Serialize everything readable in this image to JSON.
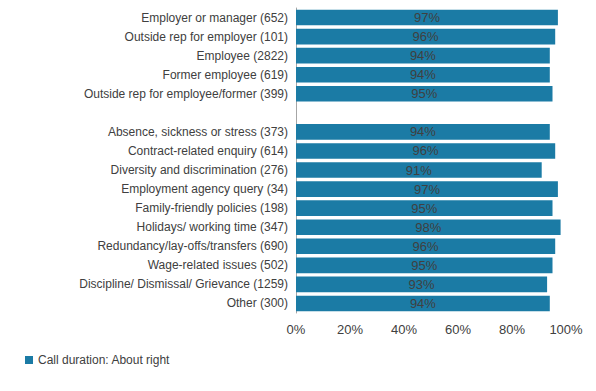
{
  "chart_data": {
    "type": "bar",
    "orientation": "horizontal",
    "categories": [
      "Employer or manager (652)",
      "Outside rep for employer (101)",
      "Employee (2822)",
      "Former employee (619)",
      "Outside rep for employee/former (399)",
      null,
      "Absence, sickness or stress (373)",
      "Contract-related enquiry (614)",
      "Diversity and discrimination (276)",
      "Employment agency query (34)",
      "Family-friendly policies (198)",
      "Holidays/ working time (347)",
      "Redundancy/lay-offs/transfers (690)",
      "Wage-related issues (502)",
      "Discipline/ Dismissal/ Grievance (1259)",
      "Other (300)"
    ],
    "series": [
      {
        "name": "Call duration: About right",
        "color": "#1b7ba5",
        "values": [
          97,
          96,
          94,
          94,
          95,
          null,
          94,
          96,
          91,
          97,
          95,
          98,
          96,
          95,
          93,
          94
        ],
        "value_labels": [
          "97%",
          "96%",
          "94%",
          "94%",
          "95%",
          null,
          "94%",
          "96%",
          "91%",
          "97%",
          "95%",
          "98%",
          "96%",
          "95%",
          "93%",
          "94%"
        ]
      }
    ],
    "xlim": [
      0,
      100
    ],
    "xticks": [
      {
        "value": 0,
        "label": "0%"
      },
      {
        "value": 20,
        "label": "20%"
      },
      {
        "value": 40,
        "label": "40%"
      },
      {
        "value": 60,
        "label": "60%"
      },
      {
        "value": 80,
        "label": "80%"
      },
      {
        "value": 100,
        "label": "100%"
      }
    ],
    "grid": false,
    "legend": "bottom",
    "data_labels": true
  }
}
